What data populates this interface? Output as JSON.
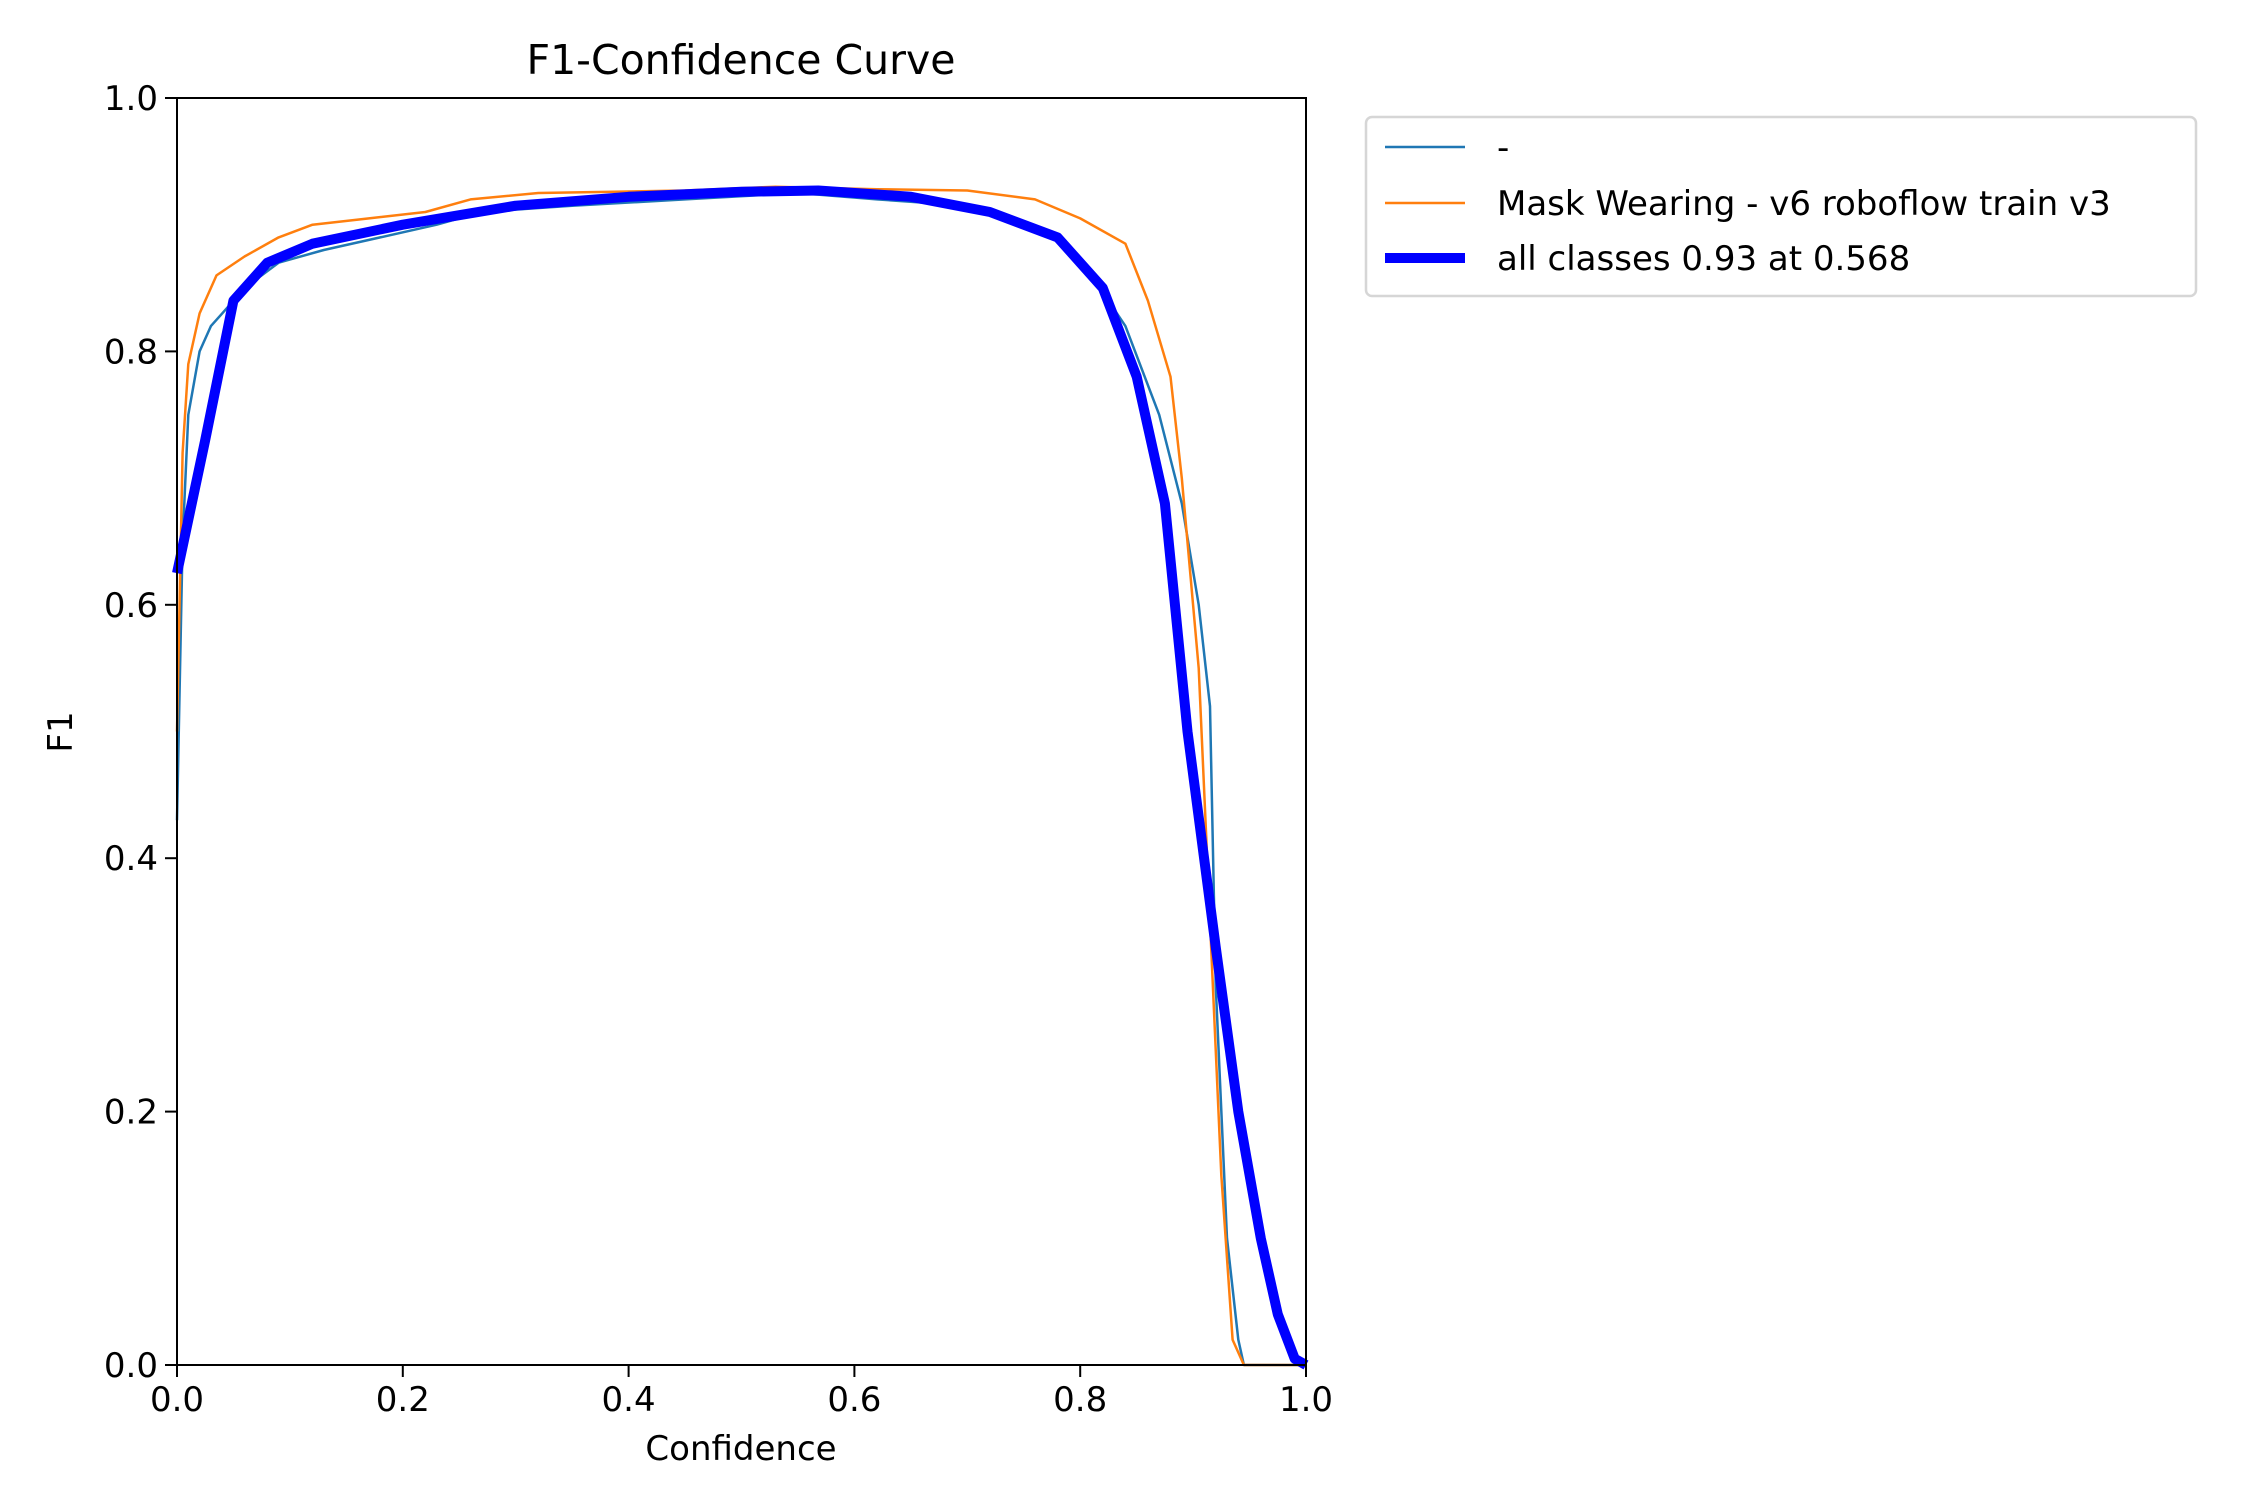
{
  "chart_data": {
    "type": "line",
    "title": "F1-Confidence Curve",
    "xlabel": "Confidence",
    "ylabel": "F1",
    "xlim": [
      0,
      1
    ],
    "ylim": [
      0,
      1
    ],
    "xticks": [
      "0.0",
      "0.2",
      "0.4",
      "0.6",
      "0.8",
      "1.0"
    ],
    "yticks": [
      "0.0",
      "0.2",
      "0.4",
      "0.6",
      "0.8",
      "1.0"
    ],
    "grid": false,
    "legend_position": "outside-top-right",
    "series": [
      {
        "name": "-",
        "color": "#1f77b4",
        "x": [
          0,
          0.005,
          0.01,
          0.02,
          0.03,
          0.04,
          0.06,
          0.09,
          0.13,
          0.18,
          0.23,
          0.27,
          0.35,
          0.45,
          0.55,
          0.62,
          0.7,
          0.74,
          0.78,
          0.81,
          0.84,
          0.87,
          0.89,
          0.905,
          0.915,
          0.92,
          0.93,
          0.94,
          0.945,
          1.0
        ],
        "y": [
          0.43,
          0.65,
          0.75,
          0.8,
          0.82,
          0.83,
          0.85,
          0.87,
          0.88,
          0.89,
          0.9,
          0.91,
          0.915,
          0.92,
          0.925,
          0.92,
          0.915,
          0.905,
          0.89,
          0.86,
          0.82,
          0.75,
          0.68,
          0.6,
          0.52,
          0.3,
          0.1,
          0.02,
          0,
          0
        ]
      },
      {
        "name": "Mask Wearing - v6 roboflow train v3",
        "color": "#ff7f0e",
        "x": [
          0,
          0.005,
          0.01,
          0.02,
          0.035,
          0.06,
          0.09,
          0.12,
          0.17,
          0.22,
          0.26,
          0.32,
          0.45,
          0.53,
          0.62,
          0.7,
          0.76,
          0.8,
          0.84,
          0.86,
          0.88,
          0.89,
          0.905,
          0.915,
          0.925,
          0.935,
          0.945,
          1.0
        ],
        "y": [
          0.5,
          0.72,
          0.79,
          0.83,
          0.86,
          0.875,
          0.89,
          0.9,
          0.905,
          0.91,
          0.92,
          0.925,
          0.927,
          0.93,
          0.928,
          0.927,
          0.92,
          0.905,
          0.885,
          0.84,
          0.78,
          0.7,
          0.55,
          0.35,
          0.15,
          0.02,
          0,
          0
        ]
      },
      {
        "name": "all classes 0.93 at 0.568",
        "color": "#0000ff",
        "x": [
          0,
          0.025,
          0.05,
          0.08,
          0.12,
          0.2,
          0.3,
          0.4,
          0.5,
          0.568,
          0.65,
          0.72,
          0.78,
          0.82,
          0.85,
          0.875,
          0.895,
          0.92,
          0.94,
          0.96,
          0.975,
          0.99,
          1.0
        ],
        "y": [
          0.625,
          0.73,
          0.84,
          0.87,
          0.885,
          0.9,
          0.915,
          0.922,
          0.926,
          0.927,
          0.922,
          0.91,
          0.89,
          0.85,
          0.78,
          0.68,
          0.5,
          0.33,
          0.2,
          0.1,
          0.04,
          0.005,
          0
        ]
      }
    ]
  }
}
